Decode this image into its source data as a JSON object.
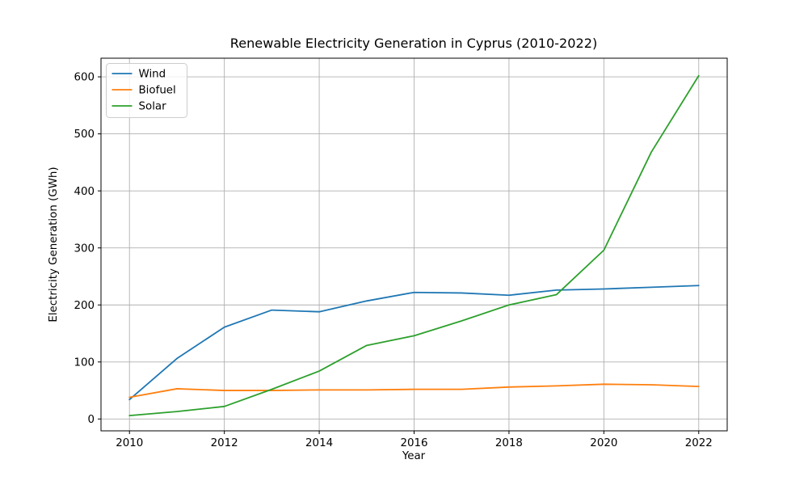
{
  "chart_data": {
    "type": "line",
    "title": "Renewable Electricity Generation in Cyprus (2010-2022)",
    "xlabel": "Year",
    "ylabel": "Electricity Generation (GWh)",
    "x": [
      2010,
      2011,
      2012,
      2013,
      2014,
      2015,
      2016,
      2017,
      2018,
      2019,
      2020,
      2021,
      2022
    ],
    "series": [
      {
        "name": "Wind",
        "color": "#1f77b4",
        "values": [
          34,
          106,
          161,
          191,
          188,
          207,
          222,
          221,
          217,
          226,
          228,
          231,
          234
        ]
      },
      {
        "name": "Biofuel",
        "color": "#ff7f0e",
        "values": [
          38,
          53,
          50,
          50,
          51,
          51,
          52,
          52,
          56,
          58,
          61,
          60,
          57
        ]
      },
      {
        "name": "Solar",
        "color": "#2ca02c",
        "values": [
          6,
          13,
          22,
          52,
          84,
          129,
          146,
          172,
          200,
          218,
          296,
          468,
          602
        ]
      }
    ],
    "xticks": [
      2010,
      2012,
      2014,
      2016,
      2018,
      2020,
      2022
    ],
    "yticks": [
      0,
      100,
      200,
      300,
      400,
      500,
      600
    ],
    "xlim": [
      2009.4,
      2022.6
    ],
    "ylim": [
      -20.8,
      632.7
    ],
    "grid": true,
    "legend_position": "upper left"
  },
  "styles": {
    "grid_color": "#b0b0b0",
    "spine_color": "#000000",
    "background_color": "#ffffff",
    "legend_border_color": "#cccccc",
    "legend_background": "rgba(255,255,255,0.8)"
  }
}
